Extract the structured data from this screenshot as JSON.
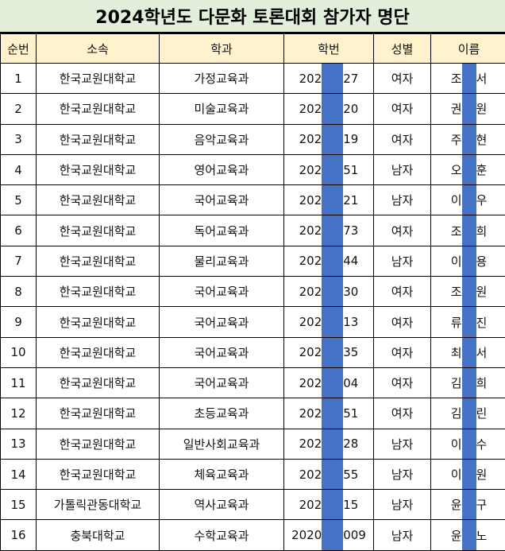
{
  "title": "2024학년도 다문화 토론대회 참가자 명단",
  "headers": [
    "순번",
    "소속",
    "학과",
    "학번",
    "성별",
    "이름"
  ],
  "redaction_color": "#4472c4",
  "rows": [
    {
      "no": "1",
      "affil": "한국교원대학교",
      "dept": "가정교육과",
      "id_pre": "202",
      "id_suf": "27",
      "gender": "여자",
      "name_first": "조",
      "name_last": "서"
    },
    {
      "no": "2",
      "affil": "한국교원대학교",
      "dept": "미술교육과",
      "id_pre": "202",
      "id_suf": "20",
      "gender": "여자",
      "name_first": "권",
      "name_last": "원"
    },
    {
      "no": "3",
      "affil": "한국교원대학교",
      "dept": "음악교육과",
      "id_pre": "202",
      "id_suf": "19",
      "gender": "여자",
      "name_first": "주",
      "name_last": "현"
    },
    {
      "no": "4",
      "affil": "한국교원대학교",
      "dept": "영어교육과",
      "id_pre": "202",
      "id_suf": "51",
      "gender": "남자",
      "name_first": "오",
      "name_last": "훈"
    },
    {
      "no": "5",
      "affil": "한국교원대학교",
      "dept": "국어교육과",
      "id_pre": "202",
      "id_suf": "21",
      "gender": "남자",
      "name_first": "이",
      "name_last": "우"
    },
    {
      "no": "6",
      "affil": "한국교원대학교",
      "dept": "독어교육과",
      "id_pre": "202",
      "id_suf": "73",
      "gender": "여자",
      "name_first": "조",
      "name_last": "희"
    },
    {
      "no": "7",
      "affil": "한국교원대학교",
      "dept": "물리교육과",
      "id_pre": "202",
      "id_suf": "44",
      "gender": "남자",
      "name_first": "이",
      "name_last": "용"
    },
    {
      "no": "8",
      "affil": "한국교원대학교",
      "dept": "국어교육과",
      "id_pre": "202",
      "id_suf": "30",
      "gender": "여자",
      "name_first": "조",
      "name_last": "원"
    },
    {
      "no": "9",
      "affil": "한국교원대학교",
      "dept": "국어교육과",
      "id_pre": "202",
      "id_suf": "13",
      "gender": "여자",
      "name_first": "류",
      "name_last": "진"
    },
    {
      "no": "10",
      "affil": "한국교원대학교",
      "dept": "국어교육과",
      "id_pre": "202",
      "id_suf": "35",
      "gender": "여자",
      "name_first": "최",
      "name_last": "서"
    },
    {
      "no": "11",
      "affil": "한국교원대학교",
      "dept": "국어교육과",
      "id_pre": "202",
      "id_suf": "04",
      "gender": "여자",
      "name_first": "김",
      "name_last": "희"
    },
    {
      "no": "12",
      "affil": "한국교원대학교",
      "dept": "초등교육과",
      "id_pre": "202",
      "id_suf": "51",
      "gender": "여자",
      "name_first": "김",
      "name_last": "린"
    },
    {
      "no": "13",
      "affil": "한국교원대학교",
      "dept": "일반사회교육과",
      "id_pre": "202",
      "id_suf": "28",
      "gender": "남자",
      "name_first": "이",
      "name_last": "수"
    },
    {
      "no": "14",
      "affil": "한국교원대학교",
      "dept": "체육교육과",
      "id_pre": "202",
      "id_suf": "55",
      "gender": "남자",
      "name_first": "이",
      "name_last": "원"
    },
    {
      "no": "15",
      "affil": "가톨릭관동대학교",
      "dept": "역사교육과",
      "id_pre": "202",
      "id_suf": "15",
      "gender": "남자",
      "name_first": "윤",
      "name_last": "구"
    },
    {
      "no": "16",
      "affil": "충북대학교",
      "dept": "수학교육과",
      "id_pre": "2020",
      "id_suf": "009",
      "gender": "남자",
      "name_first": "윤",
      "name_last": "노"
    }
  ]
}
